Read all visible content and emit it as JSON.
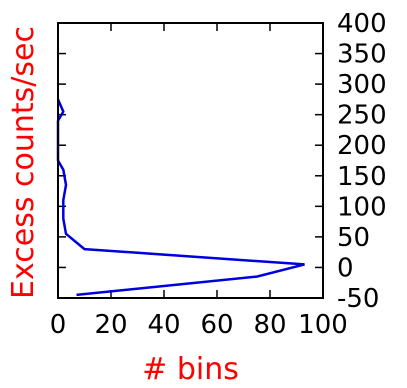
{
  "chart_data": {
    "type": "line",
    "orientation": "horizontal-histogram",
    "title": "",
    "xlabel": "# bins",
    "ylabel": "Excess counts/sec",
    "label_color": "#ff0000",
    "line_color": "#0000dd",
    "xlim": [
      0,
      100
    ],
    "ylim": [
      -50,
      400
    ],
    "x_ticks": [
      0,
      20,
      40,
      60,
      80,
      100
    ],
    "y_ticks": [
      -50,
      0,
      50,
      100,
      150,
      200,
      250,
      300,
      350,
      400
    ],
    "y_tick_side": "right",
    "grid": false,
    "legend": "none",
    "series": [
      {
        "x": [
          0,
          2,
          0,
          0,
          2,
          3,
          2,
          2,
          3,
          10,
          93,
          75,
          7
        ],
        "y": [
          275,
          255,
          240,
          175,
          160,
          135,
          110,
          80,
          55,
          30,
          5,
          -15,
          -45
        ]
      }
    ]
  }
}
